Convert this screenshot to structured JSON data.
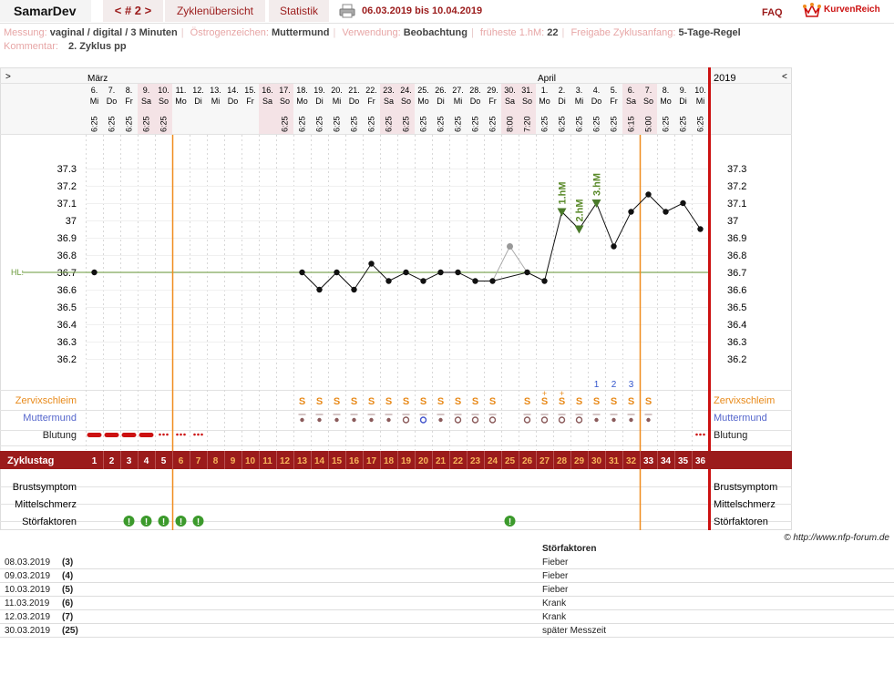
{
  "header": {
    "user": "SamarDev",
    "cycle_nav": "< # 2 >",
    "tabs": [
      "Zyklenübersicht",
      "Statistik"
    ],
    "print_icon": "printer-icon",
    "date_range": "06.03.2019 bis 10.04.2019",
    "faq": "FAQ",
    "brand": "KurvenReich",
    "brand_icon": "crown-icon"
  },
  "meta": {
    "messung_label": "Messung:",
    "messung": "vaginal / digital / 3 Minuten",
    "oestrogen_label": "Östrogenzeichen:",
    "oestrogen": "Muttermund",
    "verwendung_label": "Verwendung:",
    "verwendung": "Beobachtung",
    "hm_label": "früheste 1.hM:",
    "hm": "22",
    "freigabe_label": "Freigabe Zyklusanfang:",
    "freigabe": "5-Tage-Regel",
    "kommentar_label": "Kommentar:",
    "kommentar": "2. Zyklus pp"
  },
  "chart_data": {
    "type": "line",
    "months": [
      {
        "label": "März",
        "col": 0
      },
      {
        "label": "April",
        "col": 26
      }
    ],
    "year_label": "2019",
    "nav_left": ">",
    "nav_right": "<",
    "dates": [
      "6.",
      "7.",
      "8.",
      "9.",
      "10.",
      "11.",
      "12.",
      "13.",
      "14.",
      "15.",
      "16.",
      "17.",
      "18.",
      "19.",
      "20.",
      "21.",
      "22.",
      "23.",
      "24.",
      "25.",
      "26.",
      "27.",
      "28.",
      "29.",
      "30.",
      "31.",
      "1.",
      "2.",
      "3.",
      "4.",
      "5.",
      "6.",
      "7.",
      "8.",
      "9.",
      "10."
    ],
    "weekdays": [
      "Mi",
      "Do",
      "Fr",
      "Sa",
      "So",
      "Mo",
      "Di",
      "Mi",
      "Do",
      "Fr",
      "Sa",
      "So",
      "Mo",
      "Di",
      "Mi",
      "Do",
      "Fr",
      "Sa",
      "So",
      "Mo",
      "Di",
      "Mi",
      "Do",
      "Fr",
      "Sa",
      "So",
      "Mo",
      "Di",
      "Mi",
      "Do",
      "Fr",
      "Sa",
      "So",
      "Mo",
      "Di",
      "Mi"
    ],
    "weekend_flags": [
      0,
      0,
      0,
      1,
      1,
      0,
      0,
      0,
      0,
      0,
      1,
      1,
      0,
      0,
      0,
      0,
      0,
      1,
      1,
      0,
      0,
      0,
      0,
      0,
      1,
      1,
      0,
      0,
      0,
      0,
      0,
      1,
      1,
      0,
      0,
      0
    ],
    "times": [
      "6:25",
      "6:25",
      "6:25",
      "6:25",
      "6:25",
      "",
      "",
      "",
      "",
      "",
      "",
      "6:25",
      "6:25",
      "6:25",
      "6:25",
      "6:25",
      "6:25",
      "6:25",
      "6:25",
      "6:25",
      "6:25",
      "6:25",
      "6:25",
      "6:25",
      "8:00",
      "7:20",
      "6:25",
      "6:25",
      "6:25",
      "6:25",
      "6:25",
      "6:15",
      "5:00",
      "6:25",
      "6:25",
      "6:25"
    ],
    "temperatures": [
      36.7,
      null,
      null,
      null,
      null,
      null,
      null,
      null,
      null,
      null,
      null,
      null,
      36.7,
      36.6,
      36.7,
      36.6,
      36.75,
      36.65,
      36.7,
      36.65,
      36.7,
      36.7,
      36.65,
      36.65,
      36.85,
      36.7,
      36.65,
      37.05,
      36.95,
      37.1,
      36.85,
      37.05,
      37.15,
      37.05,
      37.1,
      36.95
    ],
    "excluded_cols": [
      24
    ],
    "y_ticks": [
      "37.3",
      "37.2",
      "37.1",
      "37",
      "36.9",
      "36.8",
      "36.7",
      "36.6",
      "36.5",
      "36.4",
      "36.3",
      "36.2"
    ],
    "ylim": [
      36.15,
      37.3
    ],
    "hl_label": "HL:",
    "hl_value": 36.7,
    "hm_markers": [
      {
        "col": 27,
        "label": "1.hM"
      },
      {
        "col": 28,
        "label": "2.hM"
      },
      {
        "col": 29,
        "label": "3.hM"
      }
    ],
    "count_labels": [
      {
        "col": 29,
        "label": "1"
      },
      {
        "col": 30,
        "label": "2"
      },
      {
        "col": 31,
        "label": "3"
      }
    ],
    "cycle_line_cols": [
      4.5,
      31.5
    ],
    "row_labels": {
      "zervix": "Zervixschleim",
      "mm": "Muttermund",
      "blutung": "Blutung",
      "zyklustag": "Zyklustag",
      "brust": "Brustsymptom",
      "mittel": "Mittelschmerz",
      "stoer": "Störfaktoren"
    },
    "zervix": [
      "",
      "",
      "",
      "",
      "",
      "",
      "",
      "",
      "",
      "",
      "",
      "",
      "S",
      "S",
      "S",
      "S",
      "S",
      "S",
      "S",
      "S",
      "S",
      "S",
      "S",
      "S",
      "",
      "S",
      "S+",
      "S+",
      "S",
      "S",
      "S",
      "S",
      "S",
      "",
      "",
      ""
    ],
    "muttermund": [
      "",
      "",
      "",
      "",
      "",
      "",
      "",
      "",
      "",
      "",
      "",
      "",
      "o",
      "o",
      "o",
      "o",
      "o",
      "o",
      "O",
      "O",
      "o",
      "O",
      "O",
      "O",
      "",
      "O",
      "O",
      "O",
      "O",
      "o",
      "o",
      "o",
      "o",
      "",
      "",
      ""
    ],
    "blutung": [
      3,
      3,
      3,
      3,
      1,
      1,
      1,
      0,
      0,
      0,
      0,
      0,
      0,
      0,
      0,
      0,
      0,
      0,
      0,
      0,
      0,
      0,
      0,
      0,
      0,
      0,
      0,
      0,
      0,
      0,
      0,
      0,
      0,
      0,
      0,
      1
    ],
    "zyklustage": [
      "1",
      "2",
      "3",
      "4",
      "5",
      "6",
      "7",
      "8",
      "9",
      "10",
      "11",
      "12",
      "13",
      "14",
      "15",
      "16",
      "17",
      "18",
      "19",
      "20",
      "21",
      "22",
      "23",
      "24",
      "25",
      "26",
      "27",
      "28",
      "29",
      "30",
      "31",
      "32",
      "33",
      "34",
      "35",
      "36"
    ],
    "stoerfaktoren_cols": [
      2,
      3,
      4,
      5,
      6,
      24
    ]
  },
  "stoerfaktoren_table": {
    "title": "Störfaktoren",
    "copyright": "© http://www.nfp-forum.de",
    "rows": [
      {
        "date": "08.03.2019",
        "day": "(3)",
        "text": "Fieber"
      },
      {
        "date": "09.03.2019",
        "day": "(4)",
        "text": "Fieber"
      },
      {
        "date": "10.03.2019",
        "day": "(5)",
        "text": "Fieber"
      },
      {
        "date": "11.03.2019",
        "day": "(6)",
        "text": "Krank"
      },
      {
        "date": "12.03.2019",
        "day": "(7)",
        "text": "Krank"
      },
      {
        "date": "30.03.2019",
        "day": "(25)",
        "text": "später Messzeit"
      }
    ]
  },
  "colors": {
    "accent": "#9b1b1b",
    "weekend": "#f4e3e6",
    "line_orange": "#f08c1e",
    "red_line": "#cc1111",
    "green_hm": "#5a8a2a",
    "blue_text": "#3355cc"
  }
}
